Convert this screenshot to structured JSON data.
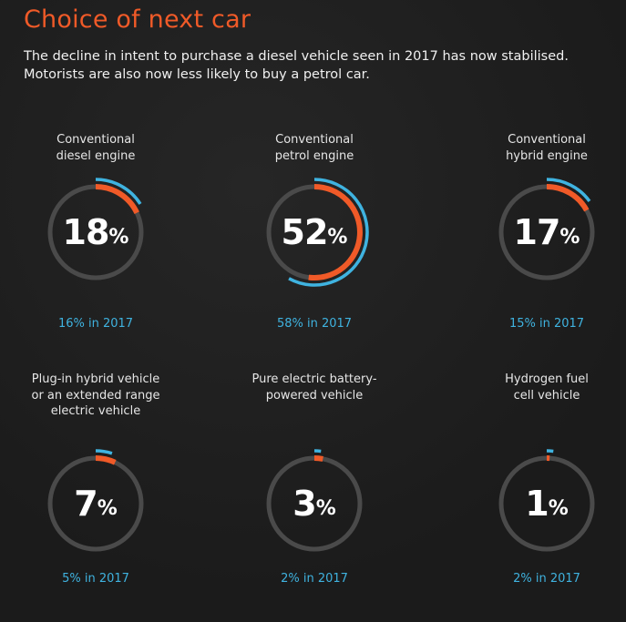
{
  "title": "Choice of next car",
  "subtitle": [
    "The decline in intent to purchase a diesel vehicle seen in 2017 has now stabilised.",
    "Motorists are also now less likely to buy a petrol car."
  ],
  "colors": {
    "title": "#f05a28",
    "current": "#f05a28",
    "previous": "#3fb3e0",
    "track": "#4a4a4a",
    "background": "#1d1d1d"
  },
  "chart_data": {
    "type": "donut",
    "percent_sign": "%",
    "items": [
      {
        "label_lines": [
          "Conventional",
          "diesel engine"
        ],
        "value": 18,
        "prev_value": 16,
        "prev_label": "16% in 2017"
      },
      {
        "label_lines": [
          "Conventional",
          "petrol engine"
        ],
        "value": 52,
        "prev_value": 58,
        "prev_label": "58% in 2017"
      },
      {
        "label_lines": [
          "Conventional",
          "hybrid engine"
        ],
        "value": 17,
        "prev_value": 15,
        "prev_label": "15% in 2017"
      },
      {
        "label_lines": [
          "Plug-in hybrid vehicle",
          "or an extended range",
          "electric vehicle"
        ],
        "value": 7,
        "prev_value": 5,
        "prev_label": "5% in 2017"
      },
      {
        "label_lines": [
          "Pure electric battery-",
          "powered vehicle"
        ],
        "value": 3,
        "prev_value": 2,
        "prev_label": "2% in 2017"
      },
      {
        "label_lines": [
          "Hydrogen fuel",
          "cell vehicle"
        ],
        "value": 1,
        "prev_value": 2,
        "prev_label": "2% in 2017"
      }
    ]
  }
}
